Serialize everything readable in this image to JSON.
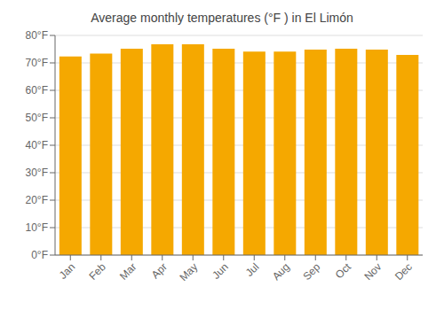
{
  "chart_data": {
    "type": "bar",
    "title": "Average monthly temperatures (°F ) in El Limón",
    "categories": [
      "Jan",
      "Feb",
      "Mar",
      "Apr",
      "May",
      "Jun",
      "Jul",
      "Aug",
      "Sep",
      "Oct",
      "Nov",
      "Dec"
    ],
    "values": [
      72.3,
      73.4,
      75.2,
      76.8,
      76.8,
      75.2,
      74.1,
      74.1,
      74.8,
      75.2,
      74.8,
      72.9
    ],
    "color": "#F5A800",
    "ylim": [
      0,
      80
    ],
    "yticks": [
      {
        "value": 0,
        "label": "0°F"
      },
      {
        "value": 10,
        "label": "10°F"
      },
      {
        "value": 20,
        "label": "20°F"
      },
      {
        "value": 30,
        "label": "30°F"
      },
      {
        "value": 40,
        "label": "40°F"
      },
      {
        "value": 50,
        "label": "50°F"
      },
      {
        "value": 60,
        "label": "60°F"
      },
      {
        "value": 70,
        "label": "70°F"
      },
      {
        "value": 80,
        "label": "80°F"
      }
    ],
    "grid": true
  }
}
